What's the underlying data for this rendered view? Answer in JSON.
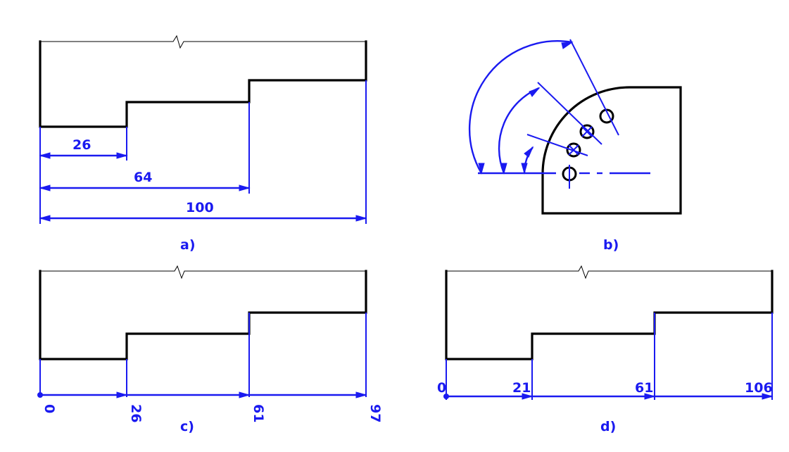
{
  "colors": {
    "object_lines": "#000000",
    "dimension_lines": "#1a1af0",
    "background": "#ffffff"
  },
  "panel_a": {
    "caption": "a)",
    "dimensions": [
      "26",
      "64",
      "100"
    ]
  },
  "panel_b": {
    "caption": "b)"
  },
  "panel_c": {
    "caption": "c)",
    "dimensions": [
      "0",
      "26",
      "61",
      "97"
    ]
  },
  "panel_d": {
    "caption": "d)",
    "dimensions": [
      "0",
      "21",
      "61",
      "106"
    ]
  }
}
